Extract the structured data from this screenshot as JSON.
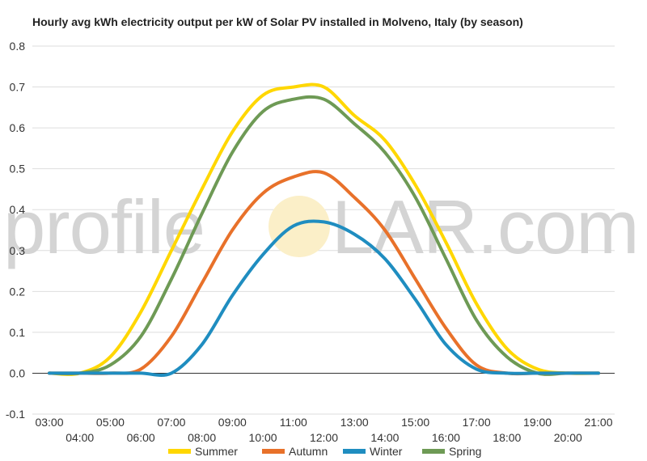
{
  "chart_data": {
    "type": "line",
    "title": "Hourly avg kWh electricity output per kW of Solar PV installed in Molveno, Italy (by season)",
    "xlabel": "",
    "ylabel": "",
    "ylim": [
      -0.1,
      0.8
    ],
    "yticks": [
      "0.8",
      "0.7",
      "0.6",
      "0.5",
      "0.4",
      "0.3",
      "0.2",
      "0.1",
      "0.0",
      "-0.1"
    ],
    "grid": true,
    "legend_position": "bottom",
    "categories": [
      "03:00",
      "04:00",
      "05:00",
      "06:00",
      "07:00",
      "08:00",
      "09:00",
      "10:00",
      "11:00",
      "12:00",
      "13:00",
      "14:00",
      "15:00",
      "16:00",
      "17:00",
      "18:00",
      "19:00",
      "20:00",
      "21:00"
    ],
    "series": [
      {
        "name": "Summer",
        "color": "#FFD700",
        "values": [
          0.0,
          0.0,
          0.04,
          0.15,
          0.3,
          0.45,
          0.59,
          0.68,
          0.7,
          0.7,
          0.63,
          0.57,
          0.46,
          0.32,
          0.17,
          0.06,
          0.01,
          0.0,
          0.0
        ]
      },
      {
        "name": "Autumn",
        "color": "#E8712A",
        "values": [
          0.0,
          0.0,
          0.0,
          0.01,
          0.09,
          0.22,
          0.35,
          0.44,
          0.48,
          0.49,
          0.43,
          0.35,
          0.23,
          0.11,
          0.02,
          0.0,
          0.0,
          0.0,
          0.0
        ]
      },
      {
        "name": "Winter",
        "color": "#1F8DC0",
        "values": [
          0.0,
          0.0,
          0.0,
          0.0,
          0.0,
          0.07,
          0.19,
          0.29,
          0.36,
          0.37,
          0.34,
          0.28,
          0.18,
          0.07,
          0.01,
          0.0,
          0.0,
          0.0,
          0.0
        ]
      },
      {
        "name": "Spring",
        "color": "#6E9A55",
        "values": [
          0.0,
          0.0,
          0.02,
          0.09,
          0.23,
          0.39,
          0.54,
          0.64,
          0.67,
          0.67,
          0.61,
          0.54,
          0.43,
          0.28,
          0.13,
          0.04,
          0.0,
          0.0,
          0.0
        ]
      }
    ]
  },
  "watermark": {
    "prefix": "profile",
    "suffix": "LAR.com",
    "sun_color": "#FBEFC8"
  }
}
